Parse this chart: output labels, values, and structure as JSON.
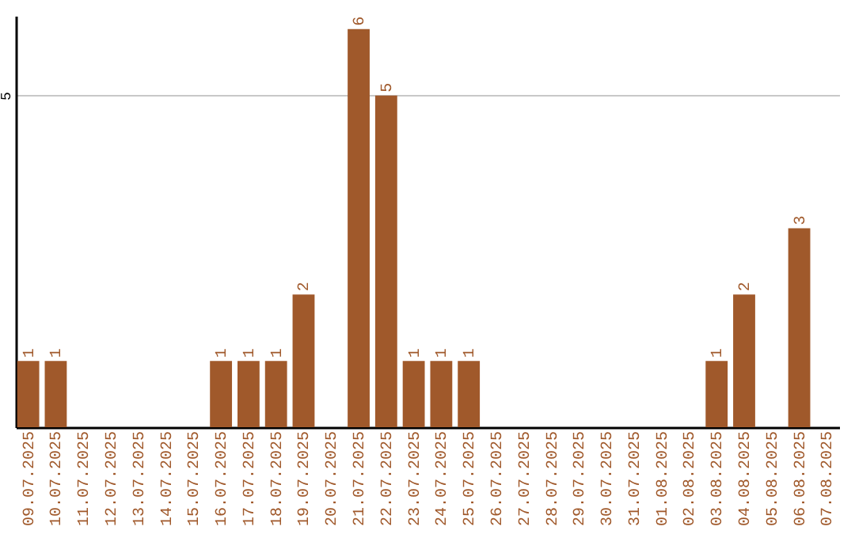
{
  "chart_data": {
    "type": "bar",
    "categories": [
      "09.07.2025",
      "10.07.2025",
      "11.07.2025",
      "12.07.2025",
      "13.07.2025",
      "14.07.2025",
      "15.07.2025",
      "16.07.2025",
      "17.07.2025",
      "18.07.2025",
      "19.07.2025",
      "20.07.2025",
      "21.07.2025",
      "22.07.2025",
      "23.07.2025",
      "24.07.2025",
      "25.07.2025",
      "26.07.2025",
      "27.07.2025",
      "28.07.2025",
      "29.07.2025",
      "30.07.2025",
      "31.07.2025",
      "01.08.2025",
      "02.08.2025",
      "03.08.2025",
      "04.08.2025",
      "05.08.2025",
      "06.08.2025",
      "07.08.2025"
    ],
    "values": [
      1,
      1,
      0,
      0,
      0,
      0,
      0,
      1,
      1,
      1,
      2,
      0,
      6,
      5,
      1,
      1,
      1,
      0,
      0,
      0,
      0,
      0,
      0,
      0,
      0,
      1,
      2,
      0,
      3,
      0
    ],
    "value_labels": [
      "1",
      "1",
      null,
      null,
      null,
      null,
      null,
      "1",
      "1",
      "1",
      "2",
      null,
      "6",
      "5",
      "1",
      "1",
      "1",
      null,
      null,
      null,
      null,
      null,
      null,
      null,
      null,
      "1",
      "2",
      null,
      "3",
      null
    ],
    "color": "#a0592b",
    "ylim": [
      0,
      6.2
    ],
    "yticks": [
      5
    ],
    "grid": "y"
  }
}
